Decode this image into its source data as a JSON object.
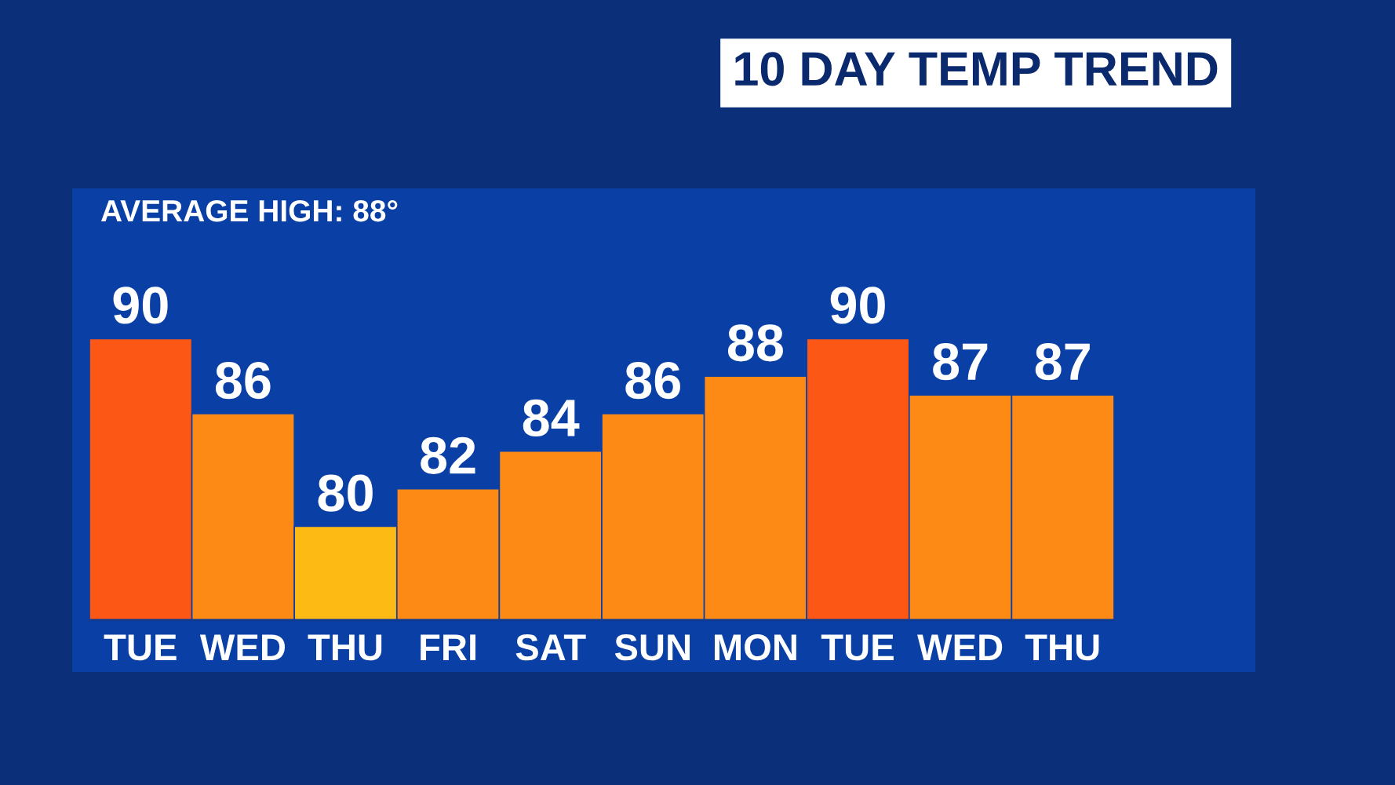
{
  "chart_data": {
    "type": "bar",
    "title": "10 DAY TEMP TREND",
    "annotations": [
      "AVERAGE HIGH: 88°"
    ],
    "categories": [
      "TUE",
      "WED",
      "THU",
      "FRI",
      "SAT",
      "SUN",
      "MON",
      "TUE",
      "WED",
      "THU"
    ],
    "values": [
      90,
      86,
      80,
      82,
      84,
      86,
      88,
      90,
      87,
      87
    ],
    "colors": [
      "#fc5714",
      "#fd8a14",
      "#fdb914",
      "#fd8a14",
      "#fd8a14",
      "#fd8a14",
      "#fd8a14",
      "#fc5714",
      "#fd8a14",
      "#fd8a14"
    ],
    "ylim": [
      75,
      98
    ],
    "data_labels": true,
    "grid": false,
    "legend": false
  }
}
